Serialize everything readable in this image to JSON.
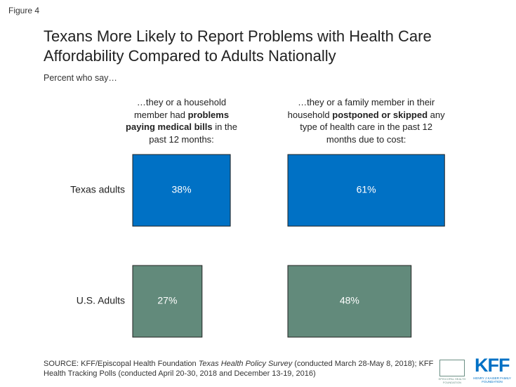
{
  "figure_label": "Figure 4",
  "title": "Texans More Likely to Report Problems with Health Care Affordability Compared to Adults Nationally",
  "subtitle": "Percent who say…",
  "chart_data": {
    "type": "bar",
    "orientation": "horizontal",
    "categories": [
      "Texas adults",
      "U.S. Adults"
    ],
    "category_colors": [
      "#0071c5",
      "#628a7b"
    ],
    "xlim": [
      0,
      100
    ],
    "series": [
      {
        "name_parts": [
          "…they or a household member had ",
          "problems paying medical bills",
          " in the past 12 months:"
        ],
        "bold_parts": [
          1
        ],
        "values": [
          38,
          27
        ],
        "value_labels": [
          "38%",
          "27%"
        ]
      },
      {
        "name_parts": [
          "…they or a family member in their household ",
          "postponed or skipped",
          " any type of health care in the past 12 months due to cost:"
        ],
        "bold_parts": [
          1
        ],
        "values": [
          61,
          48
        ],
        "value_labels": [
          "61%",
          "48%"
        ]
      }
    ]
  },
  "source": {
    "parts": [
      "SOURCE: KFF/Episcopal Health Foundation ",
      "Texas Health Policy Survey",
      " (conducted March 28-May 8, 2018); KFF Health Tracking Polls (conducted April 20-30, 2018 and December 13-19, 2016)"
    ],
    "italic_parts": [
      1
    ]
  },
  "logos": {
    "ehf": "EPISCOPAL HEALTH FOUNDATION",
    "kff": "KFF",
    "kff_sub": "HENRY J KAISER FAMILY FOUNDATION"
  }
}
